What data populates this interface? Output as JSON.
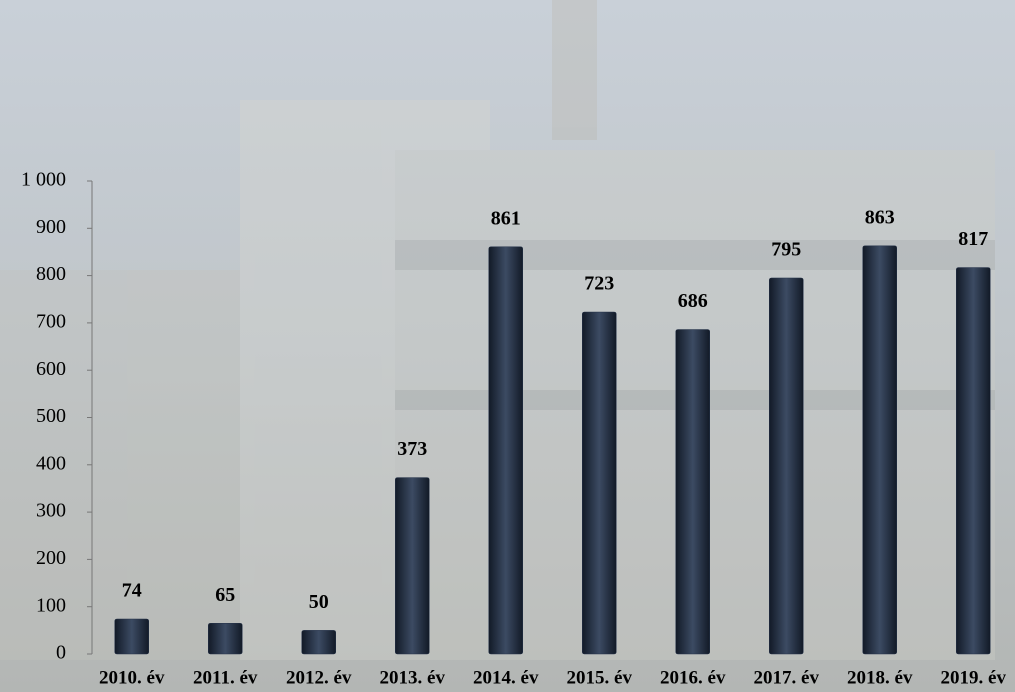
{
  "chart_data": {
    "type": "bar",
    "categories": [
      "2010. év",
      "2011. év",
      "2012. év",
      "2013. év",
      "2014. év",
      "2015. év",
      "2016. év",
      "2017. év",
      "2018. év",
      "2019. év"
    ],
    "values": [
      74,
      65,
      50,
      373,
      861,
      723,
      686,
      795,
      863,
      817
    ],
    "color": "#26334a",
    "ylim": [
      0,
      1000
    ],
    "yticks": [
      0,
      100,
      200,
      300,
      400,
      500,
      600,
      700,
      800,
      900,
      {
        "value": 1000,
        "label": "1 000"
      }
    ],
    "grid": false
  }
}
